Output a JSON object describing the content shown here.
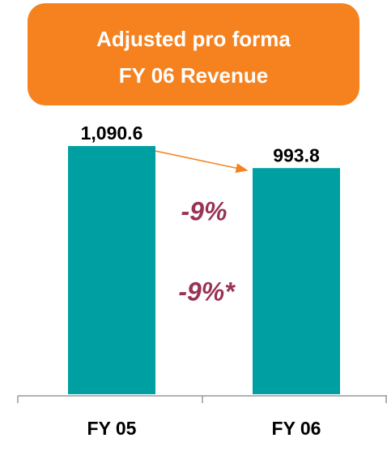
{
  "chart_data": {
    "type": "bar",
    "title": "Adjusted pro forma\nFY 06 Revenue",
    "categories": [
      "FY 05",
      "FY 06"
    ],
    "values": [
      1090.6,
      993.8
    ],
    "value_labels": [
      "1,090.6",
      "993.8"
    ],
    "color": "#00a0a2",
    "ylim": [
      0,
      1100
    ],
    "annotations": [
      "-9%",
      "-9%*"
    ]
  }
}
